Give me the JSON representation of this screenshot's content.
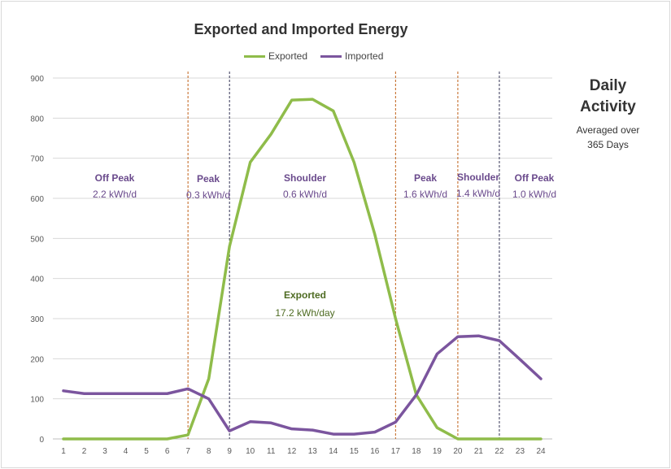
{
  "chart_data": {
    "type": "line",
    "title": "Exported and Imported Energy",
    "x": [
      1,
      2,
      3,
      4,
      5,
      6,
      7,
      8,
      9,
      10,
      11,
      12,
      13,
      14,
      15,
      16,
      17,
      18,
      19,
      20,
      21,
      22,
      23,
      24
    ],
    "series": [
      {
        "name": "Exported",
        "color": "#8fbc4a",
        "values": [
          0,
          0,
          0,
          0,
          0,
          0,
          10,
          150,
          480,
          690,
          760,
          845,
          847,
          818,
          690,
          510,
          300,
          110,
          28,
          0,
          0,
          0,
          0,
          0
        ]
      },
      {
        "name": "Imported",
        "color": "#7b559e",
        "values": [
          120,
          113,
          113,
          113,
          113,
          113,
          125,
          100,
          20,
          43,
          40,
          25,
          22,
          12,
          12,
          17,
          42,
          110,
          212,
          255,
          257,
          245,
          198,
          150
        ]
      }
    ],
    "ylim": [
      0,
      900
    ],
    "yticks": [
      0,
      100,
      200,
      300,
      400,
      500,
      600,
      700,
      800,
      900
    ],
    "grid": true,
    "legend": "top",
    "period_boundaries": [
      {
        "x": 7,
        "color": "#c0621a"
      },
      {
        "x": 9,
        "color": "#333355"
      },
      {
        "x": 17,
        "color": "#c0621a"
      },
      {
        "x": 20,
        "color": "#c0621a"
      },
      {
        "x": 22,
        "color": "#333355"
      }
    ],
    "periods": [
      {
        "name": "Off Peak",
        "value": "2.2 kWh/d"
      },
      {
        "name": "Peak",
        "value": "0.3 kWh/d"
      },
      {
        "name": "Shoulder",
        "value": "0.6 kWh/d"
      },
      {
        "name": "Peak",
        "value": "1.6 kWh/d"
      },
      {
        "name": "Shoulder",
        "value": "1.4 kWh/d"
      },
      {
        "name": "Off Peak",
        "value": "1.0 kWh/d"
      }
    ],
    "exported_note": {
      "label": "Exported",
      "value": "17.2 kWh/day"
    },
    "side": {
      "title_line1": "Daily",
      "title_line2": "Activity",
      "sub_line1": "Averaged over",
      "sub_line2": "365 Days"
    }
  }
}
